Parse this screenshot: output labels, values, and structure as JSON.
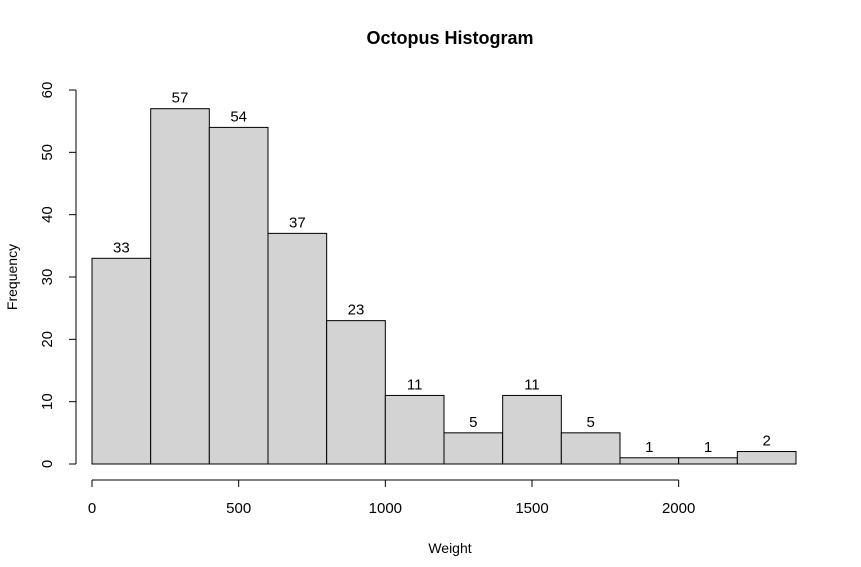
{
  "chart_data": {
    "type": "bar",
    "title": "Octopus Histogram",
    "xlabel": "Weight",
    "ylabel": "Frequency",
    "bins": [
      {
        "from": 0,
        "to": 200,
        "count": 33
      },
      {
        "from": 200,
        "to": 400,
        "count": 57
      },
      {
        "from": 400,
        "to": 600,
        "count": 54
      },
      {
        "from": 600,
        "to": 800,
        "count": 37
      },
      {
        "from": 800,
        "to": 1000,
        "count": 23
      },
      {
        "from": 1000,
        "to": 1200,
        "count": 11
      },
      {
        "from": 1200,
        "to": 1400,
        "count": 5
      },
      {
        "from": 1400,
        "to": 1600,
        "count": 11
      },
      {
        "from": 1600,
        "to": 1800,
        "count": 5
      },
      {
        "from": 1800,
        "to": 2000,
        "count": 1
      },
      {
        "from": 2000,
        "to": 2200,
        "count": 1
      },
      {
        "from": 2200,
        "to": 2400,
        "count": 2
      }
    ],
    "xlim": [
      0,
      2400
    ],
    "ylim": [
      0,
      60
    ],
    "x_ticks": [
      0,
      500,
      1000,
      1500,
      2000
    ],
    "x_tick_labels": [
      "0",
      "500",
      "1000",
      "1500",
      "2000"
    ],
    "y_ticks": [
      0,
      10,
      20,
      30,
      40,
      50,
      60
    ],
    "y_tick_labels": [
      "0",
      "10",
      "20",
      "30",
      "40",
      "50",
      "60"
    ],
    "bar_fill": "#d3d3d3",
    "bar_stroke": "#000000",
    "grid": false
  }
}
